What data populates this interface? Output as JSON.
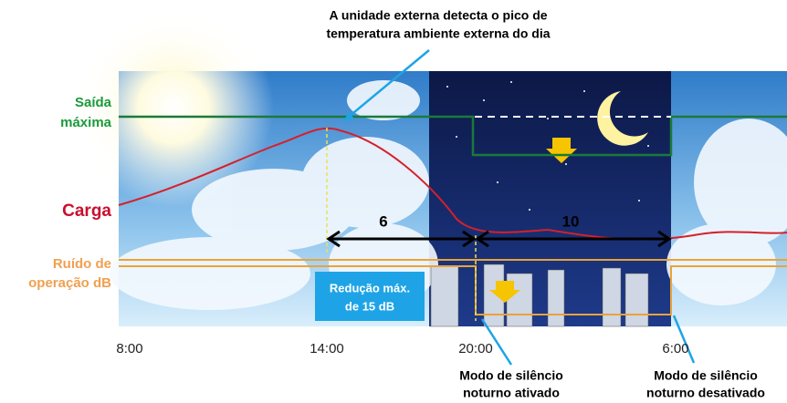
{
  "top_note": {
    "lines": [
      "A unidade externa detecta o pico de",
      "temperatura ambiente externa do dia"
    ]
  },
  "legend": {
    "max_output": [
      "Saída",
      "máxima"
    ],
    "load": "Carga",
    "noise": [
      "Ruído de",
      "operação dB"
    ]
  },
  "durations": {
    "day": "6",
    "night": "10"
  },
  "reduction_box": [
    "Redução máx.",
    "de 15 dB"
  ],
  "times": [
    "8:00",
    "14:00",
    "20:00",
    "6:00"
  ],
  "bottom_notes": {
    "on": [
      "Modo de silêncio",
      "noturno ativado"
    ],
    "off": [
      "Modo de silêncio",
      "noturno desativado"
    ]
  }
}
